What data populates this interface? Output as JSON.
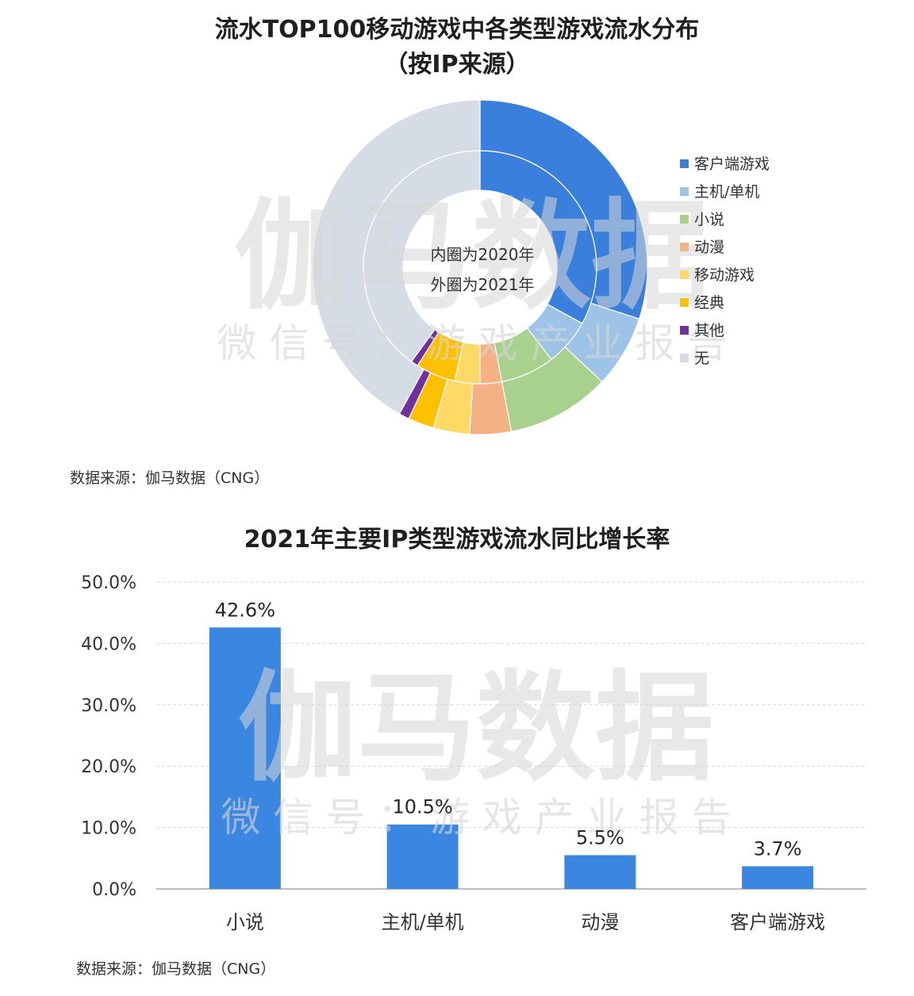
{
  "watermark": {
    "main": "伽马数据",
    "sub": "微 信 号 ： 游 戏 产 业 报 告"
  },
  "charts": {
    "donut": {
      "title_line1": "流水TOP100移动游戏中各类型游戏流水分布",
      "title_line2": "（按IP来源）",
      "center_line1": "内圈为2020年",
      "center_line2": "外圈为2021年",
      "source": "数据来源：伽马数据（CNG）"
    },
    "bar": {
      "title": "2021年主要IP类型游戏流水同比增长率",
      "source": "数据来源：伽马数据（CNG）"
    }
  },
  "chart_data": [
    {
      "type": "pie",
      "title": "流水TOP100移动游戏中各类型游戏流水分布（按IP来源）",
      "legend_position": "right",
      "categories": [
        "客户端游戏",
        "主机/单机",
        "小说",
        "动漫",
        "移动游戏",
        "经典",
        "其他",
        "无"
      ],
      "colors": [
        "#3b7fdc",
        "#9dc3e6",
        "#a9d18e",
        "#f4b183",
        "#ffd966",
        "#ffc000",
        "#7030a0",
        "#d6dce5"
      ],
      "series": [
        {
          "name": "内圈为2020年",
          "ring": "inner",
          "values": [
            33.0,
            6.5,
            7.5,
            3.0,
            3.5,
            5.5,
            1.0,
            40.0
          ]
        },
        {
          "name": "外圈为2021年",
          "ring": "outer",
          "values": [
            30.0,
            7.0,
            10.0,
            4.0,
            3.5,
            2.5,
            1.0,
            42.0
          ]
        }
      ]
    },
    {
      "type": "bar",
      "title": "2021年主要IP类型游戏流水同比增长率",
      "categories": [
        "小说",
        "主机/单机",
        "动漫",
        "客户端游戏"
      ],
      "values": [
        42.6,
        10.5,
        5.5,
        3.7
      ],
      "data_labels": [
        "42.6%",
        "10.5%",
        "5.5%",
        "3.7%"
      ],
      "ylim": [
        0,
        50
      ],
      "yticks": [
        "0.0%",
        "10.0%",
        "20.0%",
        "30.0%",
        "40.0%",
        "50.0%"
      ],
      "grid": true,
      "bar_color": "#3b86e0"
    }
  ]
}
